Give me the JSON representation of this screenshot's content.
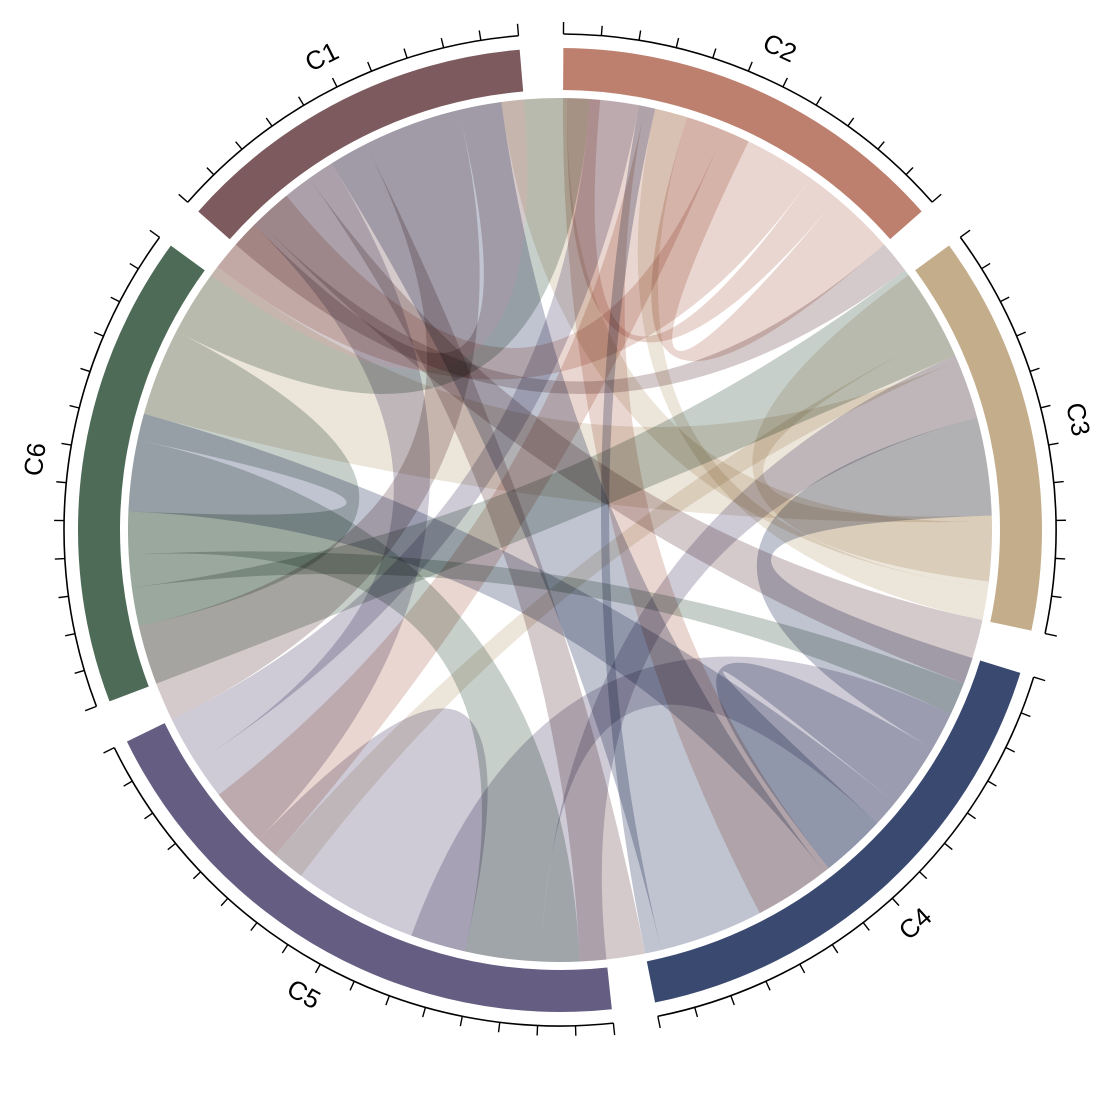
{
  "chart_data": {
    "type": "chord",
    "title": "",
    "sectors": [
      {
        "name": "C1",
        "total": 10,
        "color": "#7d5a5e"
      },
      {
        "name": "C2",
        "total": 11,
        "color": "#bd806e"
      },
      {
        "name": "C3",
        "total": 11,
        "color": "#c4ad8b"
      },
      {
        "name": "C4",
        "total": 14,
        "color": "#3a4970"
      },
      {
        "name": "C5",
        "total": 16,
        "color": "#665e82"
      },
      {
        "name": "C6",
        "total": 13,
        "color": "#4d6b57"
      }
    ],
    "matrix": [
      [
        0,
        1.0,
        2.0,
        2.0,
        3.0,
        2.0
      ],
      [
        2.0,
        0,
        2.5,
        2.5,
        3.0,
        1.0
      ],
      [
        1.0,
        2.0,
        0,
        1.0,
        5.0,
        2.0
      ],
      [
        0.5,
        3.0,
        2.0,
        0,
        3.0,
        5.5
      ],
      [
        1.5,
        2.0,
        4.0,
        5.5,
        0,
        3.0
      ],
      [
        2.0,
        3.0,
        1.0,
        3.5,
        3.5,
        0
      ]
    ],
    "ribbon_opacity": 0.32,
    "grid": false,
    "legend": false
  }
}
